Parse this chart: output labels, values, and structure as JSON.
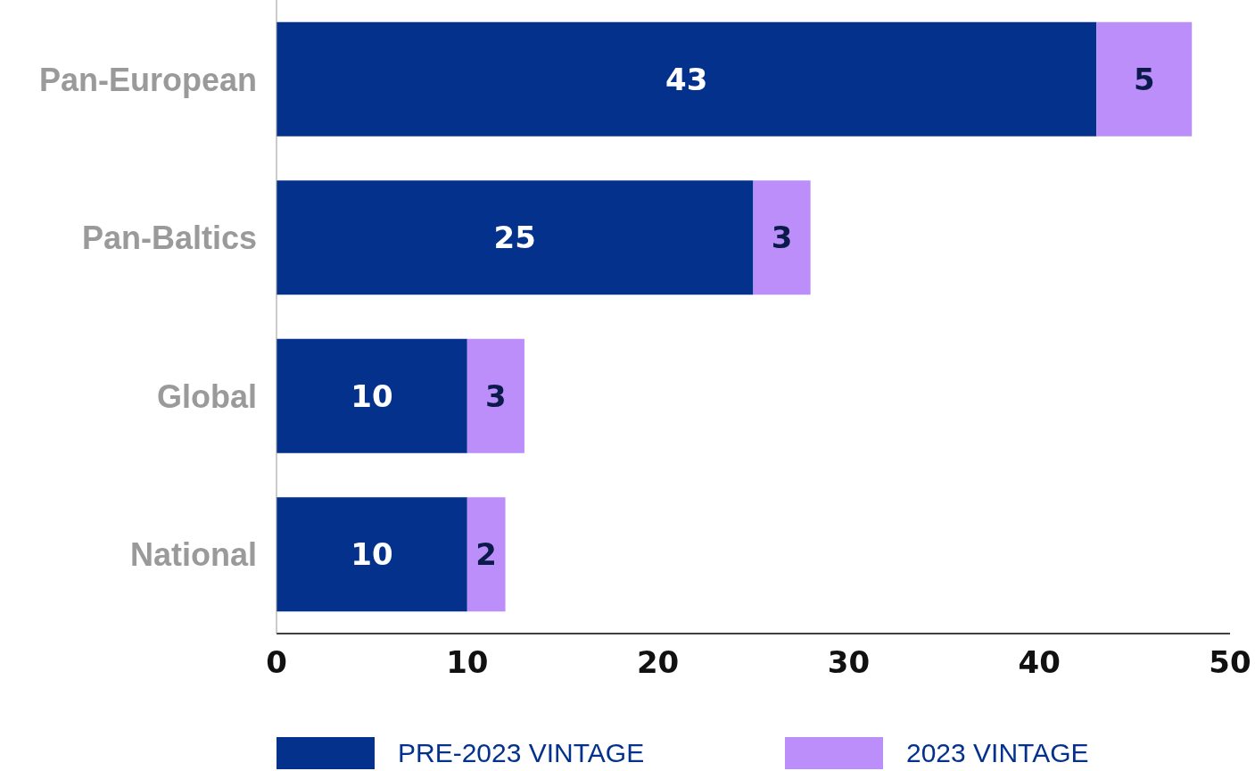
{
  "chart_data": {
    "type": "bar",
    "orientation": "horizontal",
    "stacked": true,
    "categories": [
      "Pan-European",
      "Pan-Baltics",
      "Global",
      "National"
    ],
    "series": [
      {
        "name": "PRE-2023 VINTAGE",
        "color": "#03318c",
        "values": [
          43,
          25,
          10,
          10
        ]
      },
      {
        "name": "2023 VINTAGE",
        "color": "#bb8ef9",
        "values": [
          5,
          3,
          3,
          2
        ]
      }
    ],
    "xlim": [
      0,
      50
    ],
    "xticks": [
      0,
      10,
      20,
      30,
      40,
      50
    ],
    "grid": false,
    "legend": "bottom",
    "data_labels": true
  }
}
